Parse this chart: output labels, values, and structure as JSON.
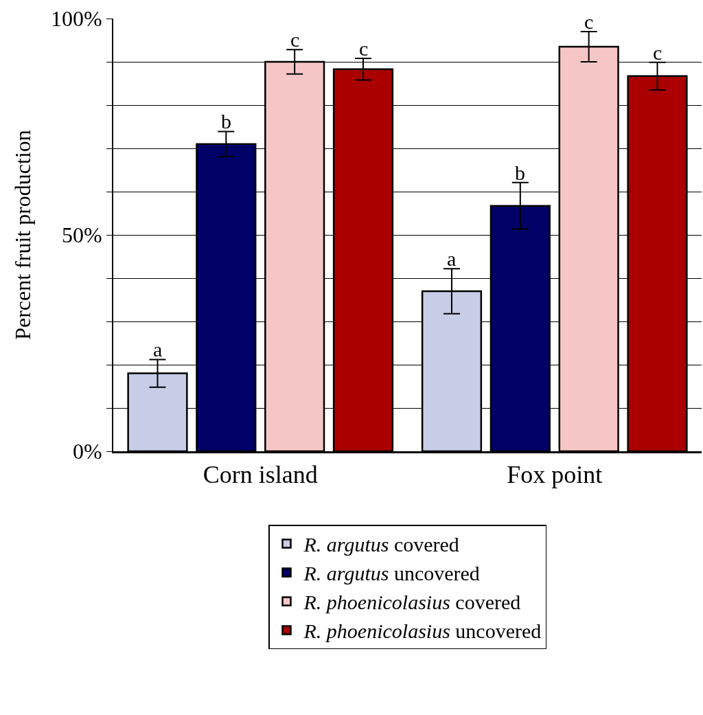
{
  "chart_data": {
    "type": "bar",
    "ylabel": "Percent fruit production",
    "categories": [
      "Corn island",
      "Fox point"
    ],
    "series": [
      {
        "name": "R. argutus covered",
        "color": "#c8cce6",
        "values": [
          18,
          37
        ],
        "errors": [
          3.2,
          5.2
        ],
        "value_labels": [
          "a",
          "a"
        ]
      },
      {
        "name": "R. argutus uncovered",
        "color": "#000066",
        "values": [
          71,
          56.7
        ],
        "errors": [
          2.9,
          5.4
        ],
        "value_labels": [
          "b",
          "b"
        ]
      },
      {
        "name": "R. phoenicolasius covered",
        "color": "#f6c6c6",
        "values": [
          90,
          93.5
        ],
        "errors": [
          2.8,
          3.5
        ],
        "value_labels": [
          "c",
          "c"
        ]
      },
      {
        "name": "R. phoenicolasius uncovered",
        "color": "#aa0000",
        "values": [
          88.3,
          86.7
        ],
        "errors": [
          2.5,
          3.2
        ],
        "value_labels": [
          "c",
          "c"
        ]
      }
    ],
    "ylim": [
      0,
      100
    ],
    "yticks": [
      {
        "value": 0,
        "label": "0%"
      },
      {
        "value": 10,
        "label": null
      },
      {
        "value": 20,
        "label": null
      },
      {
        "value": 30,
        "label": null
      },
      {
        "value": 40,
        "label": null
      },
      {
        "value": 50,
        "label": "50%"
      },
      {
        "value": 60,
        "label": null
      },
      {
        "value": 70,
        "label": null
      },
      {
        "value": 80,
        "label": null
      },
      {
        "value": 90,
        "label": null
      },
      {
        "value": 100,
        "label": "100%"
      }
    ],
    "grid": "y",
    "legend": "bottom"
  }
}
